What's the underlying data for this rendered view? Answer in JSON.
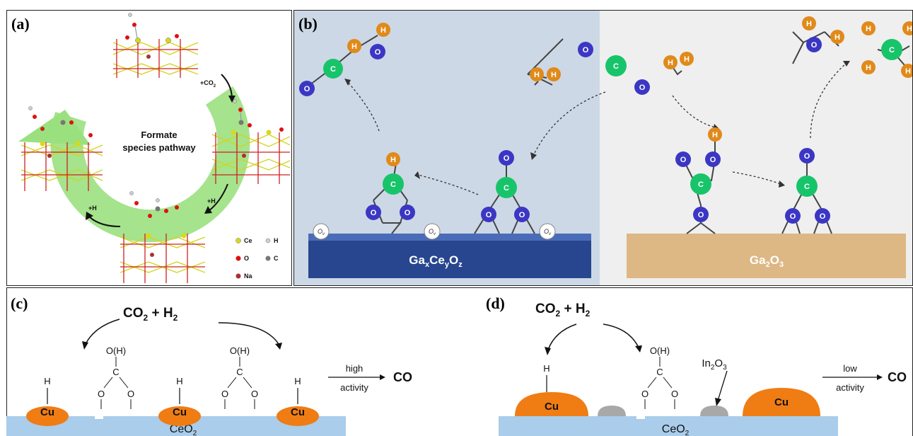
{
  "panels": {
    "a": {
      "tag": "(a)",
      "center_line1": "Formate",
      "center_line2": "species pathway",
      "step_co2": "+CO",
      "step_co2_sub": "2",
      "step_h_right": "+H",
      "step_h_left": "+H",
      "ce_site": "Ce",
      "legend": [
        {
          "label": "Ce",
          "color": "#d9d91a"
        },
        {
          "label": "H",
          "color": "#d0d0d0"
        },
        {
          "label": "O",
          "color": "#e01010"
        },
        {
          "label": "C",
          "color": "#777777"
        },
        {
          "label": "Na",
          "color": "#a83232"
        }
      ]
    },
    "b": {
      "tag": "(b)",
      "atom_h": "H",
      "atom_c": "C",
      "atom_o": "O",
      "vacancy": "O",
      "vacancy_sub": "v",
      "left_surface": {
        "ga": "Ga",
        "x": "x",
        "ce": "Ce",
        "y": "y",
        "o": "O",
        "z": "z"
      },
      "right_surface": {
        "ga": "Ga",
        "two": "2",
        "o": "O",
        "three": "3"
      }
    },
    "c": {
      "tag": "(c)",
      "reactants": {
        "co": "CO",
        "two1": "2",
        "plus": " + H",
        "two2": "2"
      },
      "oh": "O(H)",
      "c_atom": "C",
      "o_atom": "O",
      "h_atom": "H",
      "metal": "Cu",
      "support": {
        "ce": "CeO",
        "two": "2"
      },
      "arrow_top": "high",
      "arrow_bottom": "activity",
      "product": "CO"
    },
    "d": {
      "tag": "(d)",
      "reactants": {
        "co": "CO",
        "two1": "2",
        "plus": " + H",
        "two2": "2"
      },
      "oh": "O(H)",
      "c_atom": "C",
      "o_atom": "O",
      "h_atom": "H",
      "metal": "Cu",
      "promoter": {
        "in": "In",
        "two": "2",
        "o": "O",
        "three": "3"
      },
      "support": {
        "ce": "CeO",
        "two": "2"
      },
      "arrow_top": "low",
      "arrow_bottom": "activity",
      "product": "CO"
    }
  },
  "colors": {
    "ring_green": "#9be07f",
    "atom_c_green": "#18c46a",
    "atom_o_blue": "#3b37c4",
    "atom_h_orange": "#e08a1a",
    "surface_blue": "#27468f",
    "surface_tan": "#ddb784",
    "panel_b_left_bg": "#cdd8e6",
    "panel_b_right_bg": "#efefef",
    "ceo2_bar": "#a9cdea",
    "cu_orange": "#f07c14",
    "in2o3_grey": "#a8a8a8"
  }
}
